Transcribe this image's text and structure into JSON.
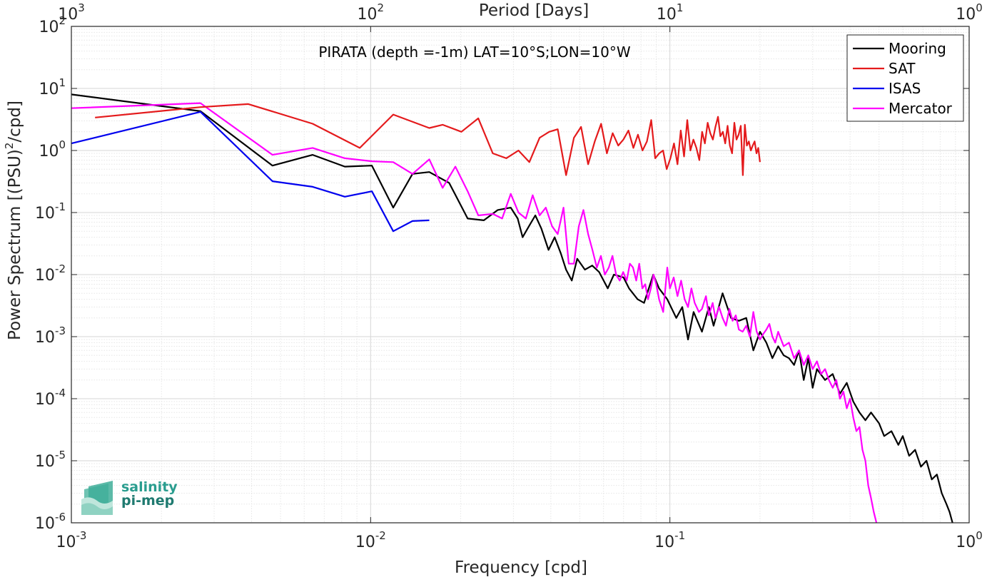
{
  "chart_data": {
    "type": "line",
    "title": "PIRATA (depth =-1m) LAT=10°S;LON=10°W",
    "xlabel": "Frequency [cpd]",
    "ylabel": "Power Spectrum [(PSU)",
    "ylabel_sup": "2",
    "ylabel_tail": "/cpd]",
    "top_xlabel": "Period [Days]",
    "xscale": "log",
    "yscale": "log",
    "xlim": [
      0.001,
      1
    ],
    "ylim": [
      1e-06,
      100
    ],
    "x_ticks": [
      {
        "base": "10",
        "exp": "-3"
      },
      {
        "base": "10",
        "exp": "-2"
      },
      {
        "base": "10",
        "exp": "-1"
      },
      {
        "base": "10",
        "exp": "0"
      }
    ],
    "top_ticks": [
      {
        "base": "10",
        "exp": "3"
      },
      {
        "base": "10",
        "exp": "2"
      },
      {
        "base": "10",
        "exp": "1"
      },
      {
        "base": "10",
        "exp": "0"
      }
    ],
    "y_ticks": [
      {
        "base": "10",
        "exp": "-6"
      },
      {
        "base": "10",
        "exp": "-5"
      },
      {
        "base": "10",
        "exp": "-4"
      },
      {
        "base": "10",
        "exp": "-3"
      },
      {
        "base": "10",
        "exp": "-2"
      },
      {
        "base": "10",
        "exp": "-1"
      },
      {
        "base": "10",
        "exp": "0"
      },
      {
        "base": "10",
        "exp": "1"
      },
      {
        "base": "10",
        "exp": "2"
      }
    ],
    "grid": true,
    "legend_position": "top-right",
    "series": [
      {
        "name": "Mooring",
        "color": "#000000",
        "points": [
          [
            0.001,
            8
          ],
          [
            0.0027,
            4.3
          ],
          [
            0.0047,
            0.57
          ],
          [
            0.0064,
            0.85
          ],
          [
            0.0082,
            0.55
          ],
          [
            0.0101,
            0.57
          ],
          [
            0.0119,
            0.12
          ],
          [
            0.0138,
            0.42
          ],
          [
            0.0157,
            0.45
          ],
          [
            0.0183,
            0.3
          ],
          [
            0.0211,
            0.08
          ],
          [
            0.0239,
            0.075
          ],
          [
            0.0266,
            0.11
          ],
          [
            0.0294,
            0.12
          ],
          [
            0.031,
            0.08
          ],
          [
            0.0322,
            0.04
          ],
          [
            0.0338,
            0.06
          ],
          [
            0.0355,
            0.09
          ],
          [
            0.0372,
            0.055
          ],
          [
            0.0393,
            0.025
          ],
          [
            0.0412,
            0.04
          ],
          [
            0.0432,
            0.022
          ],
          [
            0.045,
            0.012
          ],
          [
            0.047,
            0.008
          ],
          [
            0.049,
            0.018
          ],
          [
            0.052,
            0.012
          ],
          [
            0.055,
            0.014
          ],
          [
            0.058,
            0.011
          ],
          [
            0.062,
            0.006
          ],
          [
            0.065,
            0.01
          ],
          [
            0.07,
            0.009
          ],
          [
            0.073,
            0.006
          ],
          [
            0.078,
            0.004
          ],
          [
            0.082,
            0.0035
          ],
          [
            0.088,
            0.01
          ],
          [
            0.092,
            0.006
          ],
          [
            0.098,
            0.004
          ],
          [
            0.105,
            0.002
          ],
          [
            0.11,
            0.003
          ],
          [
            0.115,
            0.0009
          ],
          [
            0.12,
            0.0025
          ],
          [
            0.128,
            0.0012
          ],
          [
            0.135,
            0.003
          ],
          [
            0.14,
            0.0015
          ],
          [
            0.15,
            0.005
          ],
          [
            0.16,
            0.002
          ],
          [
            0.17,
            0.0018
          ],
          [
            0.18,
            0.002
          ],
          [
            0.19,
            0.0006
          ],
          [
            0.2,
            0.0012
          ],
          [
            0.21,
            0.0008
          ],
          [
            0.22,
            0.00045
          ],
          [
            0.23,
            0.0007
          ],
          [
            0.24,
            0.0005
          ],
          [
            0.25,
            0.00045
          ],
          [
            0.26,
            0.00035
          ],
          [
            0.27,
            0.0006
          ],
          [
            0.28,
            0.0002
          ],
          [
            0.29,
            0.00045
          ],
          [
            0.3,
            0.00015
          ],
          [
            0.31,
            0.0003
          ],
          [
            0.33,
            0.0002
          ],
          [
            0.35,
            0.00025
          ],
          [
            0.37,
            0.00012
          ],
          [
            0.39,
            0.00018
          ],
          [
            0.41,
            9e-05
          ],
          [
            0.43,
            6e-05
          ],
          [
            0.45,
            4.5e-05
          ],
          [
            0.47,
            6e-05
          ],
          [
            0.5,
            4e-05
          ],
          [
            0.52,
            2.5e-05
          ],
          [
            0.55,
            3e-05
          ],
          [
            0.58,
            1.8e-05
          ],
          [
            0.6,
            2.5e-05
          ],
          [
            0.63,
            1.2e-05
          ],
          [
            0.66,
            1.5e-05
          ],
          [
            0.69,
            8e-06
          ],
          [
            0.72,
            1e-05
          ],
          [
            0.75,
            5e-06
          ],
          [
            0.78,
            6e-06
          ],
          [
            0.81,
            3e-06
          ],
          [
            0.84,
            2e-06
          ],
          [
            0.86,
            1.5e-06
          ],
          [
            0.88,
            1e-06
          ]
        ]
      },
      {
        "name": "SAT",
        "color": "#e41a1c",
        "points": [
          [
            0.0012,
            3.4
          ],
          [
            0.0027,
            5
          ],
          [
            0.0039,
            5.6
          ],
          [
            0.0064,
            2.7
          ],
          [
            0.0092,
            1.1
          ],
          [
            0.0119,
            3.8
          ],
          [
            0.0157,
            2.3
          ],
          [
            0.0174,
            2.6
          ],
          [
            0.0201,
            2
          ],
          [
            0.0229,
            3.3
          ],
          [
            0.0256,
            0.9
          ],
          [
            0.0284,
            0.75
          ],
          [
            0.0312,
            1.0
          ],
          [
            0.0339,
            0.65
          ],
          [
            0.0367,
            1.6
          ],
          [
            0.0395,
            2
          ],
          [
            0.0422,
            2.2
          ],
          [
            0.045,
            0.4
          ],
          [
            0.0478,
            1.6
          ],
          [
            0.0505,
            2.4
          ],
          [
            0.0533,
            0.6
          ],
          [
            0.0561,
            1.4
          ],
          [
            0.0589,
            2.7
          ],
          [
            0.0616,
            0.9
          ],
          [
            0.0644,
            1.9
          ],
          [
            0.0672,
            1.2
          ],
          [
            0.0699,
            1.5
          ],
          [
            0.0727,
            2.1
          ],
          [
            0.0755,
            1.1
          ],
          [
            0.0782,
            1.8
          ],
          [
            0.081,
            1.0
          ],
          [
            0.0838,
            1.4
          ],
          [
            0.0866,
            3.1
          ],
          [
            0.0893,
            0.75
          ],
          [
            0.0921,
            0.9
          ],
          [
            0.0949,
            1.0
          ],
          [
            0.0976,
            0.5
          ],
          [
            0.1004,
            0.75
          ],
          [
            0.1032,
            1.3
          ],
          [
            0.106,
            0.6
          ],
          [
            0.1087,
            2.1
          ],
          [
            0.1115,
            0.8
          ],
          [
            0.1143,
            3.1
          ],
          [
            0.1171,
            1.0
          ],
          [
            0.1198,
            1.5
          ],
          [
            0.1226,
            1.1
          ],
          [
            0.1254,
            0.7
          ],
          [
            0.1281,
            2.0
          ],
          [
            0.1309,
            1.3
          ],
          [
            0.1337,
            2.8
          ],
          [
            0.1364,
            1.9
          ],
          [
            0.1392,
            1.5
          ],
          [
            0.142,
            2.4
          ],
          [
            0.1448,
            3.5
          ],
          [
            0.1475,
            1.7
          ],
          [
            0.1503,
            2.0
          ],
          [
            0.1531,
            1.3
          ],
          [
            0.1559,
            2.5
          ],
          [
            0.1586,
            1.2
          ],
          [
            0.1614,
            0.9
          ],
          [
            0.1642,
            2.8
          ],
          [
            0.1669,
            1.5
          ],
          [
            0.1697,
            1.8
          ],
          [
            0.1725,
            2.5
          ],
          [
            0.1753,
            0.4
          ],
          [
            0.178,
            2.6
          ],
          [
            0.1808,
            1.2
          ],
          [
            0.1836,
            1.4
          ],
          [
            0.1864,
            1.0
          ],
          [
            0.1891,
            1.2
          ],
          [
            0.1919,
            1.4
          ],
          [
            0.1947,
            0.9
          ],
          [
            0.1974,
            1.1
          ],
          [
            0.2,
            0.65
          ]
        ]
      },
      {
        "name": "ISAS",
        "color": "#0000ee",
        "points": [
          [
            0.001,
            1.3
          ],
          [
            0.0027,
            4.2
          ],
          [
            0.0047,
            0.32
          ],
          [
            0.0064,
            0.26
          ],
          [
            0.0082,
            0.18
          ],
          [
            0.0101,
            0.22
          ],
          [
            0.0119,
            0.05
          ],
          [
            0.0138,
            0.073
          ],
          [
            0.0157,
            0.075
          ]
        ]
      },
      {
        "name": "Mercator",
        "color": "#ff00ff",
        "points": [
          [
            0.001,
            4.8
          ],
          [
            0.0027,
            5.8
          ],
          [
            0.0047,
            0.85
          ],
          [
            0.0064,
            1.1
          ],
          [
            0.0082,
            0.75
          ],
          [
            0.0101,
            0.67
          ],
          [
            0.0119,
            0.65
          ],
          [
            0.0138,
            0.42
          ],
          [
            0.0157,
            0.72
          ],
          [
            0.0174,
            0.25
          ],
          [
            0.0192,
            0.55
          ],
          [
            0.0211,
            0.22
          ],
          [
            0.0229,
            0.09
          ],
          [
            0.0256,
            0.095
          ],
          [
            0.0275,
            0.08
          ],
          [
            0.0294,
            0.2
          ],
          [
            0.0312,
            0.1
          ],
          [
            0.033,
            0.08
          ],
          [
            0.0348,
            0.19
          ],
          [
            0.0367,
            0.09
          ],
          [
            0.0385,
            0.12
          ],
          [
            0.0404,
            0.06
          ],
          [
            0.0422,
            0.045
          ],
          [
            0.0441,
            0.12
          ],
          [
            0.0459,
            0.015
          ],
          [
            0.0478,
            0.015
          ],
          [
            0.0496,
            0.06
          ],
          [
            0.0514,
            0.11
          ],
          [
            0.0533,
            0.045
          ],
          [
            0.0551,
            0.025
          ],
          [
            0.057,
            0.013
          ],
          [
            0.0588,
            0.02
          ],
          [
            0.0606,
            0.01
          ],
          [
            0.0625,
            0.013
          ],
          [
            0.0643,
            0.02
          ],
          [
            0.0661,
            0.01
          ],
          [
            0.068,
            0.008
          ],
          [
            0.0698,
            0.011
          ],
          [
            0.0717,
            0.008
          ],
          [
            0.0735,
            0.015
          ],
          [
            0.0753,
            0.013
          ],
          [
            0.0772,
            0.008
          ],
          [
            0.079,
            0.015
          ],
          [
            0.0809,
            0.006
          ],
          [
            0.0827,
            0.007
          ],
          [
            0.0845,
            0.004
          ],
          [
            0.0864,
            0.006
          ],
          [
            0.0882,
            0.01
          ],
          [
            0.09,
            0.007
          ],
          [
            0.092,
            0.004
          ],
          [
            0.095,
            0.0025
          ],
          [
            0.098,
            0.013
          ],
          [
            0.1,
            0.006
          ],
          [
            0.103,
            0.009
          ],
          [
            0.106,
            0.0045
          ],
          [
            0.109,
            0.008
          ],
          [
            0.112,
            0.004
          ],
          [
            0.115,
            0.003
          ],
          [
            0.118,
            0.006
          ],
          [
            0.121,
            0.0035
          ],
          [
            0.125,
            0.0025
          ],
          [
            0.128,
            0.0028
          ],
          [
            0.132,
            0.0045
          ],
          [
            0.135,
            0.0022
          ],
          [
            0.139,
            0.0035
          ],
          [
            0.142,
            0.002
          ],
          [
            0.146,
            0.003
          ],
          [
            0.15,
            0.002
          ],
          [
            0.154,
            0.0015
          ],
          [
            0.158,
            0.0028
          ],
          [
            0.162,
            0.0018
          ],
          [
            0.166,
            0.0022
          ],
          [
            0.17,
            0.0013
          ],
          [
            0.175,
            0.0012
          ],
          [
            0.18,
            0.0015
          ],
          [
            0.185,
            0.001
          ],
          [
            0.19,
            0.0025
          ],
          [
            0.195,
            0.0012
          ],
          [
            0.2,
            0.0009
          ],
          [
            0.205,
            0.0011
          ],
          [
            0.21,
            0.0013
          ],
          [
            0.215,
            0.0016
          ],
          [
            0.22,
            0.001
          ],
          [
            0.225,
            0.0008
          ],
          [
            0.23,
            0.0012
          ],
          [
            0.24,
            0.0007
          ],
          [
            0.25,
            0.0008
          ],
          [
            0.26,
            0.00045
          ],
          [
            0.27,
            0.0006
          ],
          [
            0.28,
            0.00035
          ],
          [
            0.29,
            0.0005
          ],
          [
            0.3,
            0.0003
          ],
          [
            0.31,
            0.0004
          ],
          [
            0.32,
            0.00025
          ],
          [
            0.33,
            0.0003
          ],
          [
            0.34,
            0.0002
          ],
          [
            0.35,
            0.00015
          ],
          [
            0.36,
            0.0002
          ],
          [
            0.37,
            0.0001
          ],
          [
            0.38,
            0.00013
          ],
          [
            0.39,
            7e-05
          ],
          [
            0.4,
            0.0001
          ],
          [
            0.41,
            5e-05
          ],
          [
            0.42,
            3e-05
          ],
          [
            0.43,
            3.5e-05
          ],
          [
            0.44,
            1.5e-05
          ],
          [
            0.45,
            1e-05
          ],
          [
            0.46,
            4e-06
          ],
          [
            0.47,
            2.5e-06
          ],
          [
            0.48,
            1.5e-06
          ],
          [
            0.49,
            1e-06
          ]
        ]
      }
    ],
    "logo": {
      "line1": "salinity",
      "line2": "pi-mep",
      "color": "#2a9d8f"
    }
  }
}
